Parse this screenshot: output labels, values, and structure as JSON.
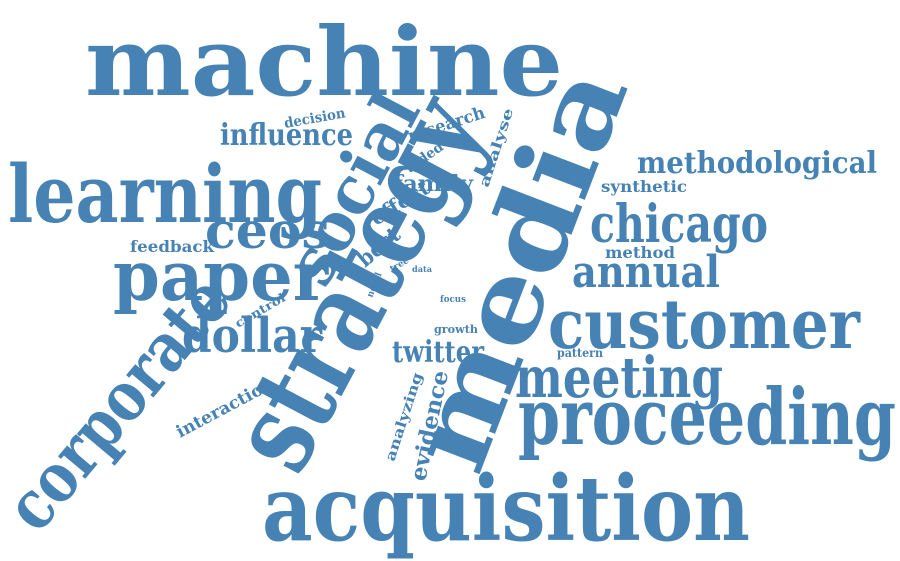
{
  "colors": {
    "word": "#4682b4",
    "background": "#ffffff"
  },
  "words": {
    "machine": "machine",
    "learning": "learning",
    "strategy": "strategy",
    "media": "media",
    "acquisition": "acquisition",
    "proceeding": "proceeding",
    "customer": "customer",
    "corporate": "corporate",
    "social": "social",
    "paper": "paper",
    "meeting": "meeting",
    "chicago": "chicago",
    "annual": "annual",
    "ceos": "ceos",
    "dollar": "dollar",
    "methodological": "methodological",
    "influence": "influence",
    "twitter": "twitter",
    "evidence": "evidence",
    "family": "family",
    "best": "best",
    "effect": "effect",
    "research": "research",
    "decision": "decision",
    "analyse": "analyse",
    "aided": "aided",
    "synthetic": "synthetic",
    "method": "method",
    "feedback": "feedback",
    "interaction": "interaction",
    "analyzing": "analyzing",
    "control": "control",
    "novel": "novel",
    "tree": "tree",
    "data": "data",
    "focus": "focus",
    "growth": "growth",
    "pattern": "pattern"
  }
}
